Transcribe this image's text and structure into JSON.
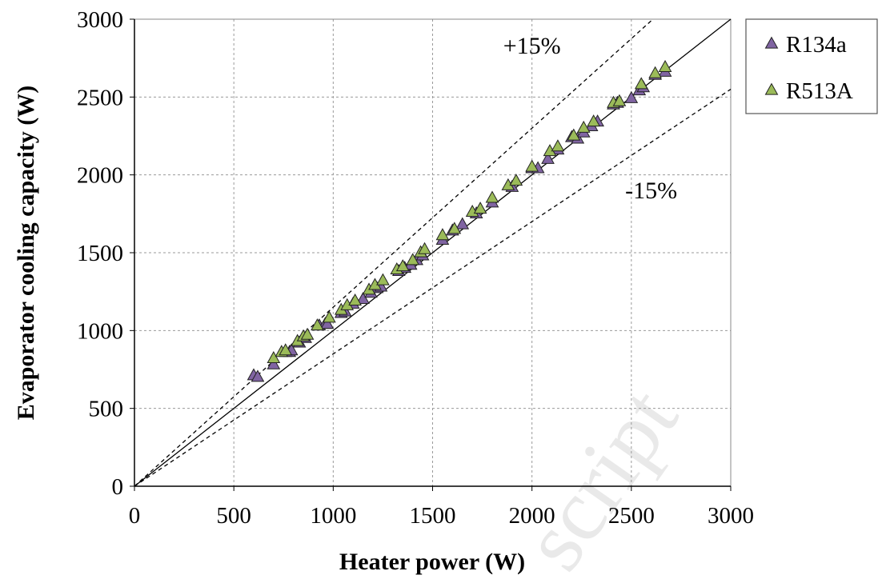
{
  "chart_data": {
    "type": "scatter",
    "xlabel": "Heater power (W)",
    "ylabel": "Evaporator cooling capacity (W)",
    "xlim": [
      0,
      3000
    ],
    "ylim": [
      0,
      3000
    ],
    "xticks": [
      "0",
      "500",
      "1000",
      "1500",
      "2000",
      "2500",
      "3000"
    ],
    "yticks": [
      "0",
      "500",
      "1000",
      "1500",
      "2000",
      "2500",
      "3000"
    ],
    "grid": true,
    "legend_position": "top-right outside",
    "reference_lines": [
      {
        "kind": "solid",
        "slope": 1.0
      },
      {
        "kind": "dashed",
        "slope": 1.15
      },
      {
        "kind": "dashed",
        "slope": 0.85
      }
    ],
    "annotations": [
      {
        "text": "+15%",
        "x": 2000,
        "y": 2780
      },
      {
        "text": "-15%",
        "x": 2600,
        "y": 1850
      }
    ],
    "series": [
      {
        "name": "R134a",
        "color": "#8064a2",
        "x": [
          600,
          620,
          700,
          760,
          780,
          790,
          830,
          860,
          930,
          960,
          970,
          1040,
          1060,
          1100,
          1150,
          1190,
          1220,
          1240,
          1330,
          1360,
          1390,
          1420,
          1450,
          1550,
          1600,
          1650,
          1720,
          1800,
          1900,
          2000,
          2030,
          2080,
          2130,
          2200,
          2230,
          2260,
          2300,
          2330,
          2410,
          2430,
          2500,
          2540,
          2560,
          2620,
          2670
        ],
        "y": [
          710,
          700,
          780,
          860,
          860,
          870,
          920,
          950,
          1030,
          1040,
          1040,
          1110,
          1120,
          1170,
          1200,
          1240,
          1270,
          1280,
          1380,
          1400,
          1420,
          1450,
          1480,
          1580,
          1640,
          1680,
          1750,
          1820,
          1920,
          2040,
          2040,
          2100,
          2160,
          2240,
          2230,
          2270,
          2310,
          2340,
          2450,
          2460,
          2490,
          2540,
          2560,
          2640,
          2660
        ]
      },
      {
        "name": "R513A",
        "color": "#9bbb59",
        "x": [
          700,
          740,
          760,
          820,
          850,
          870,
          920,
          980,
          1040,
          1070,
          1110,
          1180,
          1210,
          1250,
          1320,
          1350,
          1400,
          1440,
          1460,
          1550,
          1610,
          1700,
          1740,
          1800,
          1880,
          1920,
          2000,
          2090,
          2130,
          2210,
          2260,
          2310,
          2410,
          2440,
          2550,
          2620,
          2670
        ],
        "y": [
          820,
          860,
          870,
          930,
          960,
          970,
          1030,
          1080,
          1130,
          1160,
          1190,
          1260,
          1290,
          1320,
          1390,
          1410,
          1450,
          1500,
          1520,
          1610,
          1650,
          1760,
          1780,
          1850,
          1930,
          1960,
          2050,
          2150,
          2180,
          2250,
          2300,
          2340,
          2460,
          2470,
          2580,
          2650,
          2690
        ]
      }
    ]
  },
  "watermark": "script"
}
